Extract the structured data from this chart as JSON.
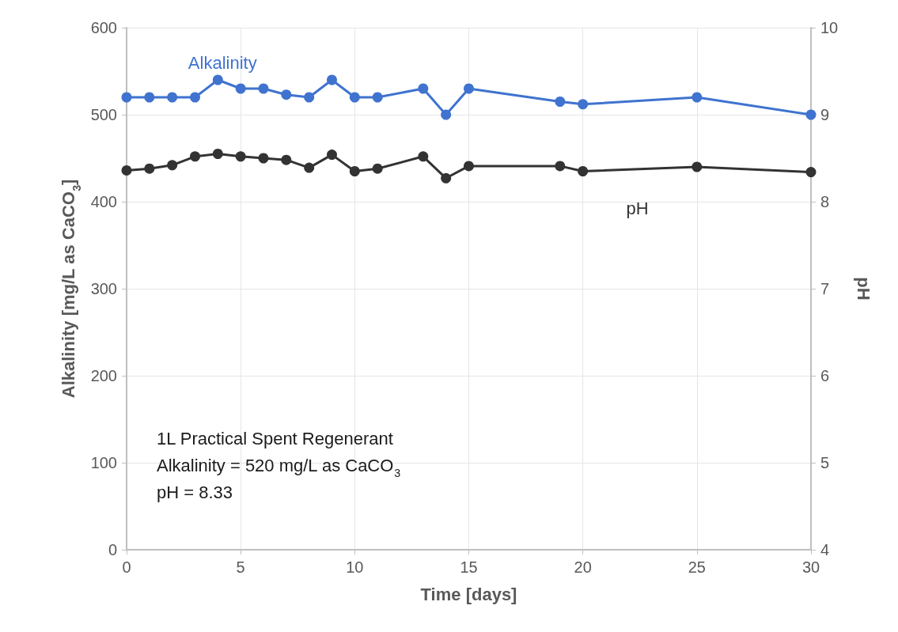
{
  "chart_data": {
    "type": "line",
    "xlabel": "Time [days]",
    "ylabel": "Alkalinity [mg/L as CaCO$_{3}$]",
    "y2label": "pH",
    "x": [
      0,
      1,
      2,
      3,
      4,
      5,
      6,
      7,
      8,
      9,
      10,
      11,
      13,
      14,
      15,
      19,
      20,
      25,
      30
    ],
    "series": [
      {
        "name": "Alkalinity",
        "color": "#3f73cf",
        "values": [
          520,
          520,
          520,
          520,
          540,
          530,
          530,
          523,
          520,
          540,
          520,
          520,
          530,
          500,
          530,
          515,
          512,
          520,
          500
        ]
      },
      {
        "name": "pH",
        "color": "#333333",
        "axis": "y2",
        "values": [
          8.36,
          8.38,
          8.42,
          8.52,
          8.55,
          8.52,
          8.5,
          8.48,
          8.39,
          8.54,
          8.35,
          8.38,
          8.52,
          8.27,
          8.41,
          8.41,
          8.35,
          8.4,
          8.34
        ]
      }
    ],
    "xlim": [
      0,
      30
    ],
    "xticks": [
      0,
      5,
      10,
      15,
      20,
      25,
      30
    ],
    "ylim": [
      0,
      600
    ],
    "yticks": [
      0,
      100,
      200,
      300,
      400,
      500,
      600
    ],
    "y2lim": [
      4,
      10
    ],
    "y2ticks": [
      4,
      5,
      6,
      7,
      8,
      9,
      10
    ],
    "annotations": [
      "1L Practical Spent Regenerant",
      "Alkalinity = 520 mg/L as CaCO$_{3}$",
      "pH = 8.33"
    ],
    "grid": true,
    "legend": false,
    "marker": "circle",
    "line_style": "solid"
  }
}
